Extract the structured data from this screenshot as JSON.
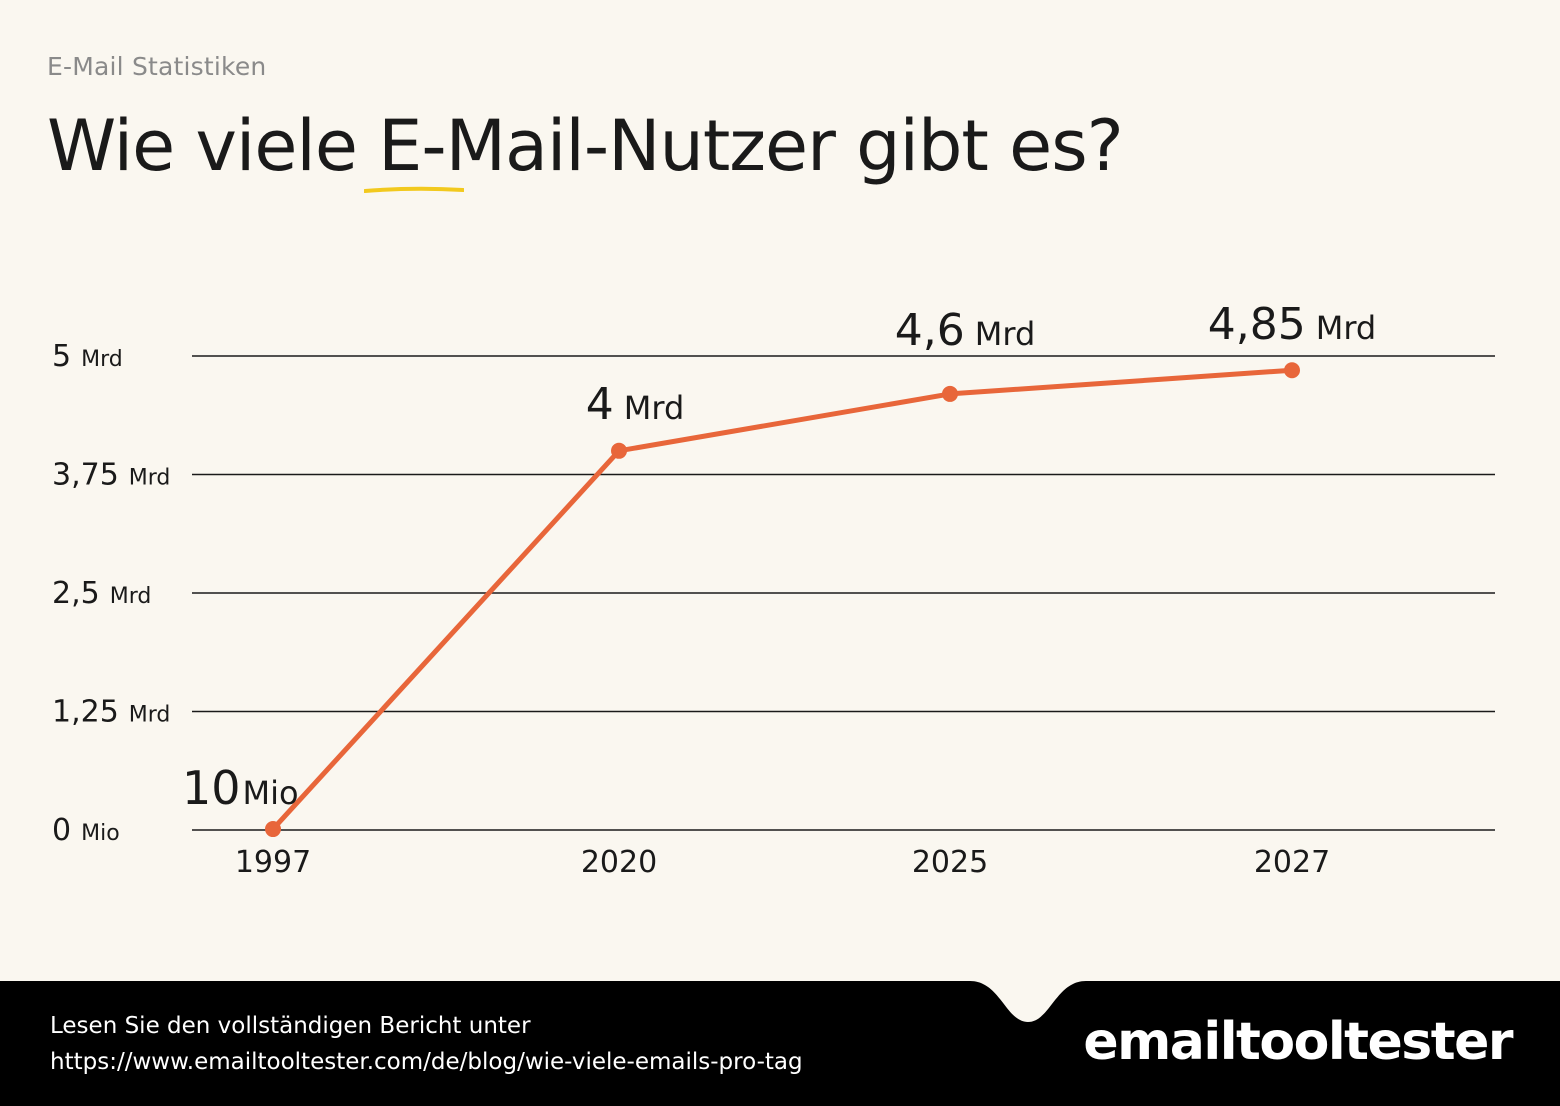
{
  "header": {
    "kicker": "E-Mail Statistiken",
    "title_before": "Wie viele ",
    "title_highlight": "E-Mail-Nutzer",
    "title_after": " gibt es?"
  },
  "colors": {
    "background": "#faf7f0",
    "line": "#e8663a",
    "highlight_underline": "#f2c91e",
    "footer": "#000000",
    "grid": "#1a1a1a"
  },
  "chart_data": {
    "type": "line",
    "x": [
      "1997",
      "2020",
      "2025",
      "2027"
    ],
    "series": [
      {
        "values": [
          0.01,
          4,
          4.6,
          4.85
        ]
      }
    ],
    "point_labels": [
      {
        "num": "10",
        "unit": "Mio"
      },
      {
        "num": "4",
        "unit": "Mrd"
      },
      {
        "num": "4,6",
        "unit": "Mrd"
      },
      {
        "num": "4,85",
        "unit": "Mrd"
      }
    ],
    "yticks": [
      {
        "value": 0,
        "num": "0",
        "unit": "Mio"
      },
      {
        "value": 1.25,
        "num": "1,25",
        "unit": "Mrd"
      },
      {
        "value": 2.5,
        "num": "2,5",
        "unit": "Mrd"
      },
      {
        "value": 3.75,
        "num": "3,75",
        "unit": "Mrd"
      },
      {
        "value": 5,
        "num": "5",
        "unit": "Mrd"
      }
    ],
    "ylim": [
      0,
      5
    ],
    "grid": true,
    "legend": "none"
  },
  "footer": {
    "line1": "Lesen Sie den vollständigen Bericht unter",
    "url": "https://www.emailtooltester.com/de/blog/wie-viele-emails-pro-tag",
    "logo": "emailtooltester"
  }
}
